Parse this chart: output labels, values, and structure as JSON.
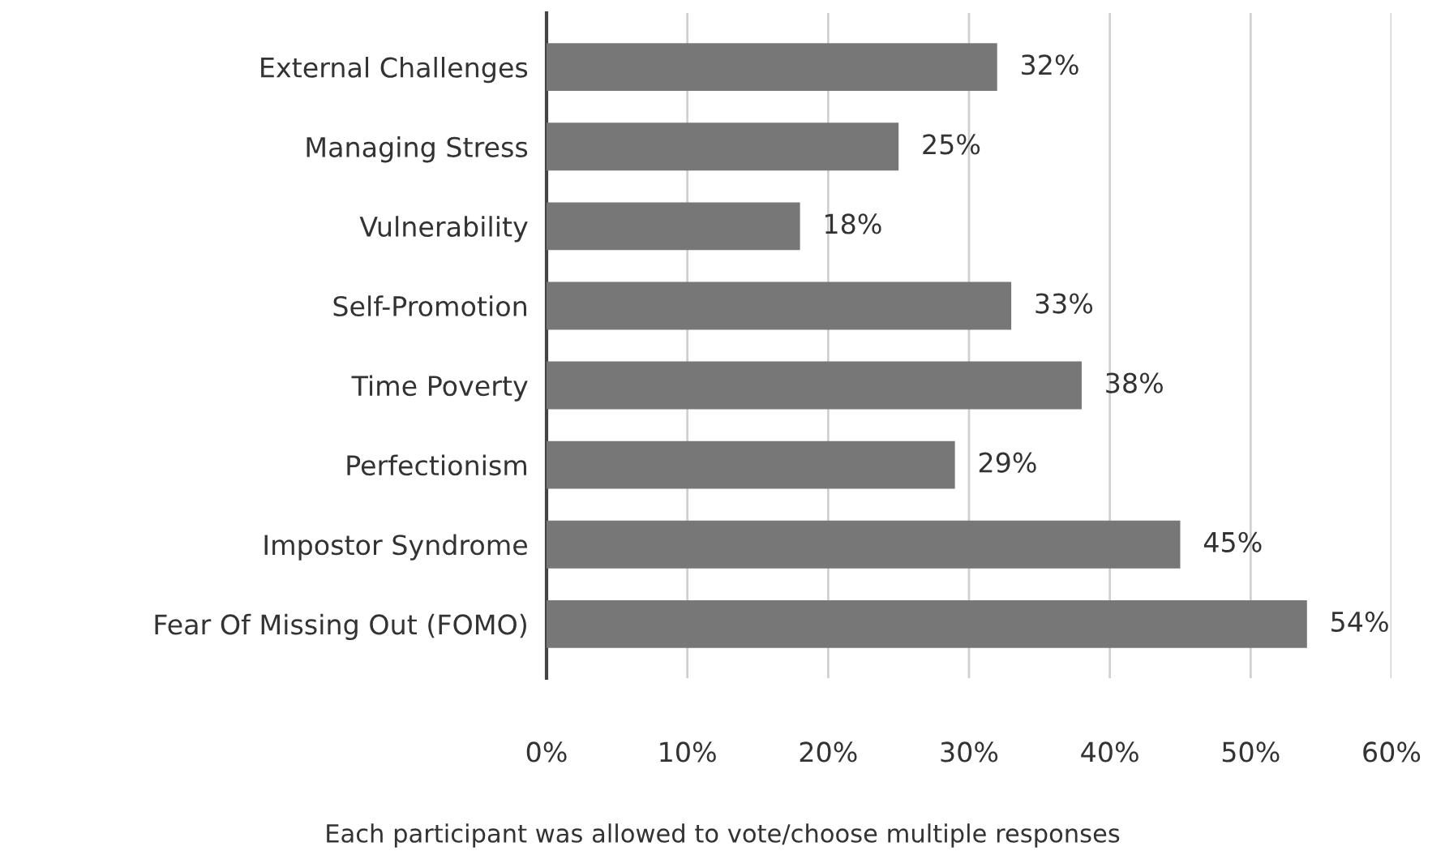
{
  "chart_data": {
    "type": "bar",
    "orientation": "horizontal",
    "categories": [
      "External Challenges",
      "Managing Stress",
      "Vulnerability",
      "Self-Promotion",
      "Time Poverty",
      "Perfectionism",
      "Impostor Syndrome",
      "Fear Of Missing Out (FOMO)"
    ],
    "values": [
      32,
      25,
      18,
      33,
      38,
      29,
      45,
      54
    ],
    "value_labels": [
      "32%",
      "25%",
      "18%",
      "33%",
      "38%",
      "29%",
      "45%",
      "54%"
    ],
    "color": "#777777",
    "xlim": [
      0,
      60
    ],
    "xticks": [
      {
        "value": 0,
        "label": "0%"
      },
      {
        "value": 10,
        "label": "10%"
      },
      {
        "value": 20,
        "label": "20%"
      },
      {
        "value": 30,
        "label": "30%"
      },
      {
        "value": 40,
        "label": "40%"
      },
      {
        "value": 50,
        "label": "50%"
      },
      {
        "value": 60,
        "label": "60%"
      }
    ],
    "grid": "x",
    "annotations": [
      "Each participant was allowed to vote/choose multiple responses"
    ]
  }
}
